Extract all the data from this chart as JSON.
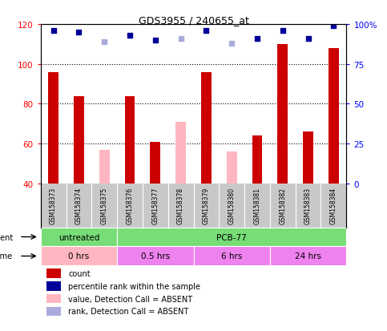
{
  "title": "GDS3955 / 240655_at",
  "samples": [
    "GSM158373",
    "GSM158374",
    "GSM158375",
    "GSM158376",
    "GSM158377",
    "GSM158378",
    "GSM158379",
    "GSM158380",
    "GSM158381",
    "GSM158382",
    "GSM158383",
    "GSM158384"
  ],
  "count_values": [
    96,
    84,
    null,
    84,
    61,
    null,
    96,
    null,
    64,
    110,
    66,
    108
  ],
  "absent_count_values": [
    null,
    null,
    57,
    null,
    null,
    71,
    null,
    56,
    null,
    null,
    null,
    null
  ],
  "rank_values": [
    96,
    95,
    null,
    93,
    90,
    null,
    96,
    null,
    91,
    96,
    91,
    99
  ],
  "absent_rank_values": [
    null,
    null,
    89,
    null,
    null,
    91,
    null,
    88,
    null,
    null,
    null,
    null
  ],
  "ylim_left": [
    40,
    120
  ],
  "ylim_right": [
    0,
    100
  ],
  "yticks_left": [
    40,
    60,
    80,
    100,
    120
  ],
  "yticks_right": [
    0,
    25,
    50,
    75,
    100
  ],
  "ytick_labels_left": [
    "40",
    "60",
    "80",
    "100",
    "120"
  ],
  "ytick_labels_right": [
    "0",
    "25",
    "50",
    "75",
    "100%"
  ],
  "bar_color_present": "#CC0000",
  "bar_color_absent": "#FFB6C1",
  "rank_color_present": "#000099",
  "rank_color_absent": "#AAAADD",
  "bg_color": "#C8C8C8",
  "plot_bg": "#FFFFFF",
  "legend_items": [
    {
      "label": "count",
      "color": "#CC0000"
    },
    {
      "label": "percentile rank within the sample",
      "color": "#000099"
    },
    {
      "label": "value, Detection Call = ABSENT",
      "color": "#FFB6C1"
    },
    {
      "label": "rank, Detection Call = ABSENT",
      "color": "#AAAADD"
    }
  ],
  "agent_groups": [
    {
      "label": "untreated",
      "span": [
        0,
        3
      ],
      "color": "#77DD77"
    },
    {
      "label": "PCB-77",
      "span": [
        3,
        12
      ],
      "color": "#77DD77"
    }
  ],
  "time_groups": [
    {
      "label": "0 hrs",
      "span": [
        0,
        3
      ],
      "color": "#FFB6C1"
    },
    {
      "label": "0.5 hrs",
      "span": [
        3,
        6
      ],
      "color": "#EE82EE"
    },
    {
      "label": "6 hrs",
      "span": [
        6,
        9
      ],
      "color": "#EE82EE"
    },
    {
      "label": "24 hrs",
      "span": [
        9,
        12
      ],
      "color": "#EE82EE"
    }
  ]
}
